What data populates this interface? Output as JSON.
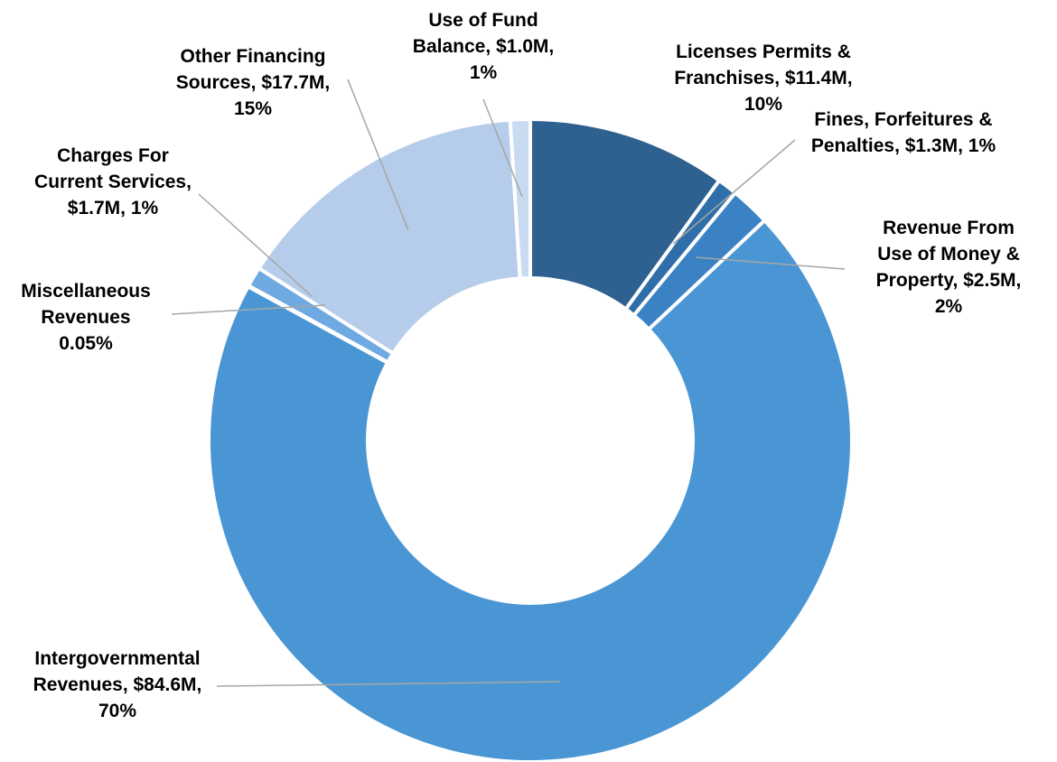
{
  "chart_data": {
    "type": "donut",
    "values": [
      10,
      1,
      2,
      70,
      0.05,
      1,
      15,
      1
    ],
    "value_labels": [
      "Licenses Permits & Franchises, $11.4M, 10%",
      "Fines, Forfeitures & Penalties, $1.3M, 1%",
      "Revenue From Use of Money & Property, $2.5M, 2%",
      "Intergovernmental Revenues, $84.6M, 70%",
      "Miscellaneous Revenues 0.05%",
      "Charges For Current Services, $1.7M, 1%",
      "Other Financing Sources, $17.7M, 15%",
      "Use of Fund Balance, $1.0M, 1%"
    ],
    "colors": [
      "#2e6190",
      "#2f6ea8",
      "#3a82c4",
      "#4a96d4",
      "#5aa0dc",
      "#6ea9e2",
      "#b6cceb",
      "#c8dbf1"
    ]
  }
}
